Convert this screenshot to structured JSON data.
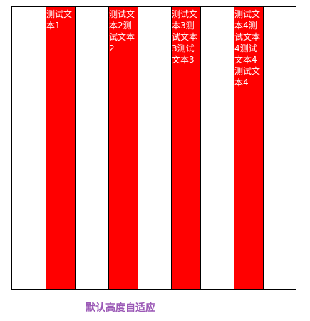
{
  "columns": [
    {
      "text": "测试文本1"
    },
    {
      "text": "测试文本2测试文本2"
    },
    {
      "text": "测试文本3测试文本3测试文本3"
    },
    {
      "text": "测试文本4测试文本4测试文本4测试文本4"
    }
  ],
  "caption": "默认高度自适应",
  "colors": {
    "column_background": "#ff0000",
    "column_text": "#ffffff",
    "caption_text": "#9b59b6",
    "border": "#000000"
  }
}
